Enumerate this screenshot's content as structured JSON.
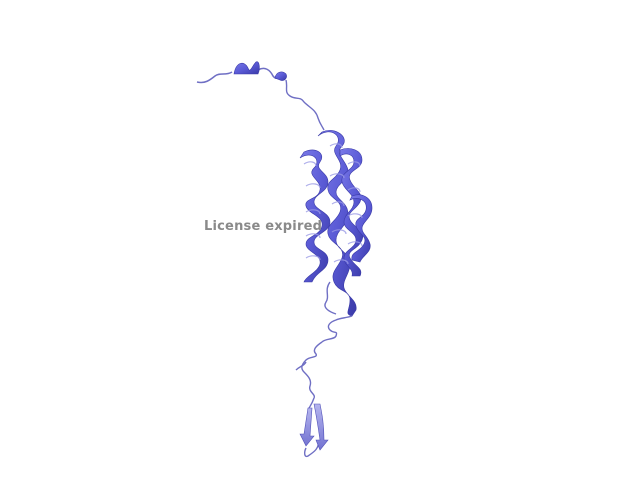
{
  "watermark": {
    "text": "License expired",
    "color": "#8a8a8a"
  },
  "structure": {
    "representation": "cartoon",
    "ribbon_color": "#5b5bd6",
    "ribbon_dark": "#3a3aa8",
    "ribbon_light": "#9a9ae6",
    "coil_color": "#6f6fc4",
    "background": "#ffffff"
  }
}
